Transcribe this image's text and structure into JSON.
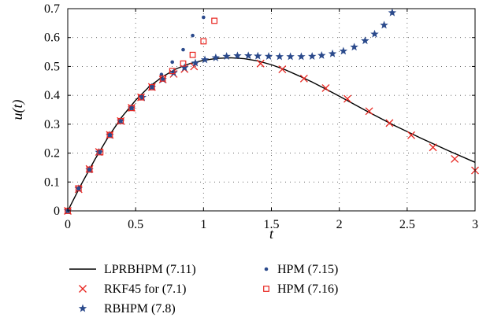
{
  "chart_data": {
    "type": "line",
    "title": "",
    "xlabel": "t",
    "ylabel": "u(t)",
    "xlim": [
      0,
      3
    ],
    "ylim": [
      0,
      0.7
    ],
    "xticks": [
      0,
      0.5,
      1,
      1.5,
      2,
      2.5,
      3
    ],
    "xtick_labels": [
      "0",
      "0.5",
      "1",
      "1.5",
      "2",
      "2.5",
      "3"
    ],
    "yticks": [
      0,
      0.1,
      0.2,
      0.3,
      0.4,
      0.5,
      0.6,
      0.7
    ],
    "ytick_labels": [
      "0",
      "0.1",
      "0.2",
      "0.3",
      "0.4",
      "0.5",
      "0.6",
      "0.7"
    ],
    "grid": true,
    "legend_position": "bottom",
    "series": [
      {
        "name": "LPRBHPM (7.11)",
        "style": "line",
        "color": "#000000",
        "x": [
          0,
          0.1,
          0.2,
          0.3,
          0.4,
          0.5,
          0.6,
          0.7,
          0.8,
          0.9,
          1.0,
          1.1,
          1.2,
          1.3,
          1.4,
          1.5,
          1.6,
          1.7,
          1.8,
          1.9,
          2.0,
          2.2,
          2.4,
          2.6,
          2.8,
          3.0
        ],
        "y": [
          0,
          0.092,
          0.178,
          0.257,
          0.326,
          0.383,
          0.43,
          0.465,
          0.492,
          0.51,
          0.521,
          0.528,
          0.53,
          0.527,
          0.519,
          0.506,
          0.489,
          0.468,
          0.446,
          0.422,
          0.397,
          0.346,
          0.297,
          0.252,
          0.209,
          0.168
        ]
      },
      {
        "name": "RKF45 for (7.1)",
        "style": "x-marker",
        "color": "#e8251f",
        "x": [
          0,
          0.08,
          0.16,
          0.23,
          0.31,
          0.39,
          0.47,
          0.54,
          0.62,
          0.7,
          0.78,
          0.86,
          0.93,
          1.42,
          1.58,
          1.74,
          1.9,
          2.06,
          2.22,
          2.37,
          2.53,
          2.69,
          2.85,
          3.0
        ],
        "y": [
          0,
          0.075,
          0.145,
          0.204,
          0.263,
          0.311,
          0.357,
          0.393,
          0.429,
          0.455,
          0.474,
          0.491,
          0.5,
          0.51,
          0.49,
          0.458,
          0.425,
          0.388,
          0.345,
          0.304,
          0.262,
          0.22,
          0.18,
          0.14
        ]
      },
      {
        "name": "RBHPM (7.8)",
        "style": "star-marker",
        "color": "#2b4a8c",
        "x": [
          0,
          0.08,
          0.16,
          0.23,
          0.31,
          0.39,
          0.47,
          0.55,
          0.62,
          0.7,
          0.78,
          0.86,
          0.94,
          1.01,
          1.09,
          1.17,
          1.25,
          1.33,
          1.4,
          1.48,
          1.56,
          1.64,
          1.72,
          1.8,
          1.87,
          1.95,
          2.03,
          2.11,
          2.19,
          2.26,
          2.33,
          2.39
        ],
        "y": [
          0,
          0.077,
          0.142,
          0.203,
          0.262,
          0.311,
          0.356,
          0.393,
          0.428,
          0.455,
          0.478,
          0.496,
          0.512,
          0.523,
          0.53,
          0.535,
          0.537,
          0.537,
          0.536,
          0.535,
          0.534,
          0.534,
          0.534,
          0.535,
          0.538,
          0.544,
          0.553,
          0.567,
          0.589,
          0.612,
          0.643,
          0.686
        ]
      },
      {
        "name": "HPM (7.15)",
        "style": "dot-marker",
        "color": "#2b4a8c",
        "x": [
          0,
          0.08,
          0.16,
          0.24,
          0.31,
          0.39,
          0.47,
          0.54,
          0.62,
          0.69,
          0.77,
          0.85,
          0.92,
          1.0
        ],
        "y": [
          0,
          0.078,
          0.145,
          0.205,
          0.263,
          0.312,
          0.357,
          0.397,
          0.434,
          0.472,
          0.515,
          0.558,
          0.607,
          0.67
        ]
      },
      {
        "name": "HPM (7.16)",
        "style": "square-marker",
        "color": "#e8251f",
        "x": [
          0,
          0.08,
          0.16,
          0.24,
          0.31,
          0.39,
          0.47,
          0.54,
          0.62,
          0.7,
          0.77,
          0.85,
          0.92,
          1.0,
          1.08
        ],
        "y": [
          0,
          0.078,
          0.143,
          0.203,
          0.263,
          0.311,
          0.356,
          0.393,
          0.428,
          0.458,
          0.484,
          0.51,
          0.54,
          0.587,
          0.658
        ]
      }
    ]
  }
}
